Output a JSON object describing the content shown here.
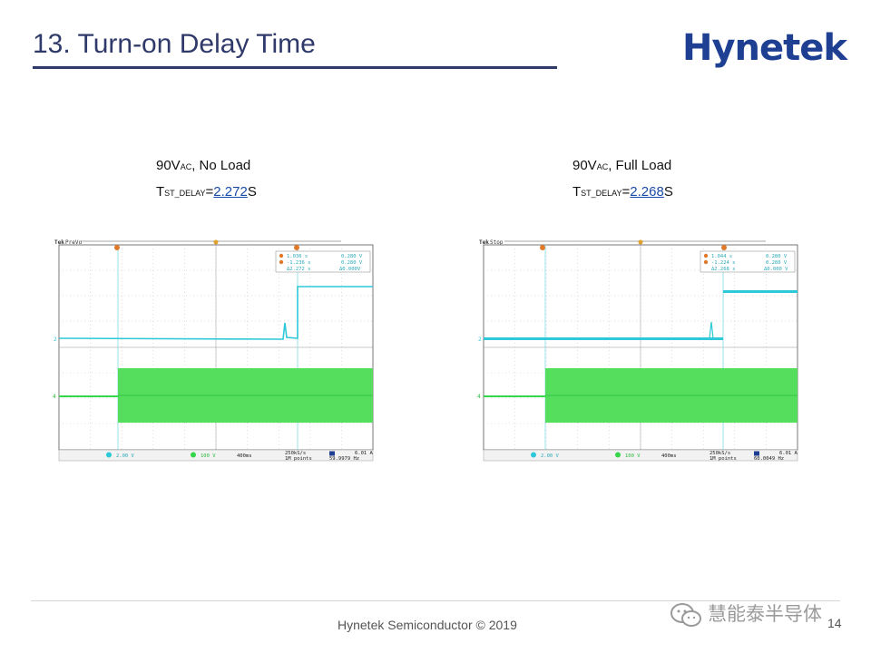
{
  "slide": {
    "title": "13. Turn-on Delay Time",
    "logo": "Hynetek",
    "footer": "Hynetek Semiconductor © 2019",
    "page_number": "14",
    "watermark": "慧能泰半导体"
  },
  "panels": [
    {
      "cond_main": "90V",
      "cond_sub": "AC",
      "cond_rest": ", No Load",
      "t_main": "T",
      "t_sub": "ST_DELAY",
      "t_eq": "=",
      "t_value": "2.272",
      "t_unit": "S",
      "scope": {
        "state": "PreVu",
        "cursor_a": "1.036 s",
        "cursor_b": "-1.236 s",
        "delta_t": "Δ2.272 s",
        "v_a": "0.280 V",
        "v_b": "0.280 V",
        "delta_v": "Δ0.000V",
        "ch2_scale": "2.00 V",
        "ch4_scale": "100 V",
        "timebase": "400ms",
        "sample_rate": "250kS/s",
        "record": "1M points",
        "trigger_level": "6.01 A",
        "freq": "59.9979 Hz"
      }
    },
    {
      "cond_main": "90V",
      "cond_sub": "AC",
      "cond_rest": ", Full Load",
      "t_main": "T",
      "t_sub": "ST_DELAY",
      "t_eq": "=",
      "t_value": "2.268",
      "t_unit": "S",
      "scope": {
        "state": "Stop",
        "cursor_a": "1.044 s",
        "cursor_b": "-1.224 s",
        "delta_t": "Δ2.268 s",
        "v_a": "0.280 V",
        "v_b": "0.280 V",
        "delta_v": "Δ0.000 V",
        "ch2_scale": "2.00 V",
        "ch4_scale": "100 V",
        "timebase": "400ms",
        "sample_rate": "250kS/s",
        "record": "1M points",
        "trigger_level": "6.01 A",
        "freq": "60.0049 Hz"
      }
    }
  ],
  "colors": {
    "title": "#2f3a6a",
    "ch2_trace": "#2ec8d8",
    "ch4_trace": "#36d64a",
    "cursor": "#7fdde6",
    "marker": "#e07a2a"
  }
}
